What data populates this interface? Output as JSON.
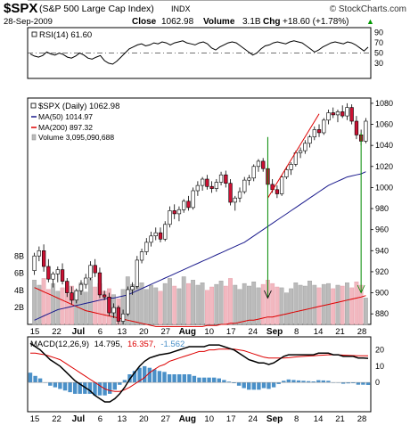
{
  "header": {
    "symbol": "$SPX",
    "name": "(S&P 500 Large Cap Index)",
    "exchange": "INDX",
    "brand": "© StockCharts.com",
    "date": "28-Sep-2009",
    "close_label": "Close",
    "close_value": "1062.98",
    "volume_label": "Volume",
    "volume_value": "3.1B",
    "chg_label": "Chg",
    "chg_value": "+18.60 (+1.78%)",
    "chg_arrow": "▲"
  },
  "rsi_panel": {
    "legend": "RSI(14) 61.60",
    "levels": [
      90,
      70,
      50,
      30
    ],
    "overbought": 70,
    "oversold": 30
  },
  "price_panel": {
    "legend_main": "$SPX (Daily) 1062.98",
    "legend_ma50": "MA(50) 1014.97",
    "legend_ma200": "MA(200) 897.32",
    "legend_volume": "Volume 3,095,090,688",
    "y_ticks": [
      880,
      900,
      920,
      940,
      960,
      980,
      1000,
      1020,
      1040,
      1060,
      1080
    ],
    "vol_ticks": [
      "2B",
      "4B",
      "6B",
      "8B"
    ],
    "colors": {
      "up": "#ffffff",
      "down": "#cc1133",
      "ma50": "#1a1a8c",
      "ma200": "#dd0000",
      "trend": "#dd0000",
      "annot": "#008800",
      "vol_up": "#bbbbbb",
      "vol_down": "#f2b8c0"
    }
  },
  "macd_panel": {
    "legend_name": "MACD(12,26,9)",
    "legend_macd": "14.795,",
    "legend_signal": "16.357,",
    "legend_hist": "-1.562",
    "y_ticks": [
      20,
      10,
      0
    ],
    "colors": {
      "macd": "#000000",
      "signal": "#dd0000",
      "hist": "#4a90c8"
    }
  },
  "x_axis": {
    "labels": [
      {
        "text": "15",
        "bold": false
      },
      {
        "text": "22",
        "bold": false
      },
      {
        "text": "Jul",
        "bold": true
      },
      {
        "text": "6",
        "bold": false
      },
      {
        "text": "13",
        "bold": false
      },
      {
        "text": "20",
        "bold": false
      },
      {
        "text": "27",
        "bold": false
      },
      {
        "text": "Aug",
        "bold": true
      },
      {
        "text": "10",
        "bold": false
      },
      {
        "text": "17",
        "bold": false
      },
      {
        "text": "24",
        "bold": false
      },
      {
        "text": "Sep",
        "bold": true
      },
      {
        "text": "8",
        "bold": false
      },
      {
        "text": "14",
        "bold": false
      },
      {
        "text": "21",
        "bold": false
      },
      {
        "text": "28",
        "bold": false
      }
    ]
  },
  "chart_data": [
    {
      "type": "line",
      "name": "RSI(14)",
      "ylim": [
        0,
        100
      ],
      "values": [
        48,
        44,
        42,
        45,
        52,
        48,
        46,
        50,
        47,
        42,
        40,
        44,
        50,
        46,
        40,
        38,
        42,
        45,
        35,
        30,
        28,
        34,
        42,
        50,
        58,
        62,
        66,
        68,
        64,
        66,
        70,
        68,
        72,
        70,
        66,
        70,
        72,
        74,
        70,
        68,
        66,
        70,
        72,
        68,
        60,
        56,
        62,
        66,
        70,
        72,
        70,
        64,
        58,
        52,
        46,
        50,
        58,
        64,
        66,
        70,
        72,
        70,
        68,
        72,
        74,
        72,
        70,
        64,
        58,
        52,
        56,
        62,
        66,
        70,
        72,
        70,
        68,
        72,
        70,
        66,
        60,
        54,
        61.6
      ]
    },
    {
      "type": "candlestick",
      "name": "$SPX (Daily)",
      "ylim": [
        870,
        1085
      ],
      "ohlc": [
        [
          921,
          938,
          917,
          935
        ],
        [
          935,
          944,
          930,
          940
        ],
        [
          940,
          946,
          920,
          925
        ],
        [
          925,
          932,
          910,
          913
        ],
        [
          913,
          920,
          905,
          918
        ],
        [
          918,
          925,
          910,
          922
        ],
        [
          922,
          928,
          908,
          911
        ],
        [
          911,
          914,
          896,
          900
        ],
        [
          900,
          906,
          889,
          893
        ],
        [
          893,
          904,
          890,
          902
        ],
        [
          902,
          912,
          898,
          908
        ],
        [
          908,
          918,
          904,
          914
        ],
        [
          914,
          930,
          912,
          926
        ],
        [
          926,
          932,
          915,
          919
        ],
        [
          919,
          924,
          895,
          898
        ],
        [
          898,
          902,
          893,
          896
        ],
        [
          896,
          900,
          878,
          881
        ],
        [
          881,
          890,
          876,
          886
        ],
        [
          886,
          888,
          870,
          873
        ],
        [
          873,
          884,
          870,
          880
        ],
        [
          880,
          906,
          878,
          903
        ],
        [
          903,
          910,
          898,
          906
        ],
        [
          906,
          935,
          904,
          931
        ],
        [
          931,
          942,
          928,
          939
        ],
        [
          939,
          952,
          936,
          948
        ],
        [
          948,
          958,
          944,
          954
        ],
        [
          954,
          962,
          950,
          957
        ],
        [
          957,
          962,
          948,
          951
        ],
        [
          951,
          968,
          949,
          965
        ],
        [
          965,
          982,
          962,
          978
        ],
        [
          978,
          984,
          970,
          975
        ],
        [
          975,
          982,
          968,
          979
        ],
        [
          979,
          989,
          976,
          987
        ],
        [
          987,
          992,
          978,
          981
        ],
        [
          981,
          1000,
          979,
          997
        ],
        [
          997,
          1006,
          992,
          1002
        ],
        [
          1002,
          1010,
          997,
          1008
        ],
        [
          1008,
          1012,
          998,
          1001
        ],
        [
          1001,
          1006,
          995,
          999
        ],
        [
          999,
          1008,
          996,
          1005
        ],
        [
          1005,
          1015,
          1002,
          1012
        ],
        [
          1012,
          1016,
          1000,
          1004
        ],
        [
          1004,
          1008,
          983,
          986
        ],
        [
          986,
          992,
          978,
          990
        ],
        [
          990,
          1000,
          986,
          996
        ],
        [
          996,
          1010,
          994,
          1007
        ],
        [
          1007,
          1012,
          1002,
          1009
        ],
        [
          1009,
          1022,
          1006,
          1020
        ],
        [
          1020,
          1027,
          1015,
          1025
        ],
        [
          1025,
          1028,
          1015,
          1018
        ],
        [
          1018,
          1022,
          1000,
          1003
        ],
        [
          1003,
          1008,
          995,
          998
        ],
        [
          998,
          1002,
          990,
          994
        ],
        [
          994,
          1012,
          992,
          1010
        ],
        [
          1010,
          1020,
          1008,
          1017
        ],
        [
          1017,
          1024,
          1012,
          1022
        ],
        [
          1022,
          1035,
          1020,
          1033
        ],
        [
          1033,
          1038,
          1028,
          1035
        ],
        [
          1035,
          1045,
          1032,
          1042
        ],
        [
          1042,
          1050,
          1038,
          1048
        ],
        [
          1048,
          1058,
          1045,
          1055
        ],
        [
          1055,
          1060,
          1048,
          1052
        ],
        [
          1052,
          1066,
          1050,
          1064
        ],
        [
          1064,
          1074,
          1060,
          1071
        ],
        [
          1071,
          1076,
          1066,
          1069
        ],
        [
          1069,
          1074,
          1062,
          1072
        ],
        [
          1072,
          1078,
          1066,
          1068
        ],
        [
          1068,
          1080,
          1064,
          1076
        ],
        [
          1076,
          1079,
          1060,
          1063
        ],
        [
          1063,
          1068,
          1046,
          1050
        ],
        [
          1050,
          1055,
          1040,
          1044
        ],
        [
          1044,
          1066,
          1042,
          1063
        ]
      ]
    },
    {
      "type": "line",
      "name": "MA(50)",
      "x_start_index": 0,
      "values": [
        874,
        876,
        878,
        880,
        882,
        884,
        885,
        886,
        887,
        888,
        889,
        890,
        891,
        892,
        893,
        894,
        895,
        895,
        896,
        897,
        898,
        900,
        902,
        904,
        906,
        908,
        910,
        912,
        914,
        916,
        918,
        920,
        922,
        924,
        926,
        928,
        930,
        932,
        934,
        936,
        938,
        940,
        942,
        944,
        946,
        948,
        951,
        954,
        957,
        960,
        963,
        966,
        969,
        972,
        975,
        978,
        981,
        984,
        987,
        990,
        993,
        996,
        999,
        1002,
        1004,
        1006,
        1008,
        1010,
        1011,
        1012,
        1013,
        1014.97
      ]
    },
    {
      "type": "line",
      "name": "MA(200)",
      "values": [
        905,
        903,
        901,
        899,
        897,
        895,
        893,
        891,
        889,
        887,
        885,
        883,
        882,
        881,
        880,
        879,
        878,
        877,
        876,
        875,
        874,
        873,
        872,
        871,
        870,
        869,
        868,
        868,
        868,
        868,
        868,
        868,
        868,
        868,
        868,
        868,
        868,
        869,
        869,
        869,
        870,
        870,
        871,
        871,
        872,
        873,
        874,
        874,
        875,
        876,
        877,
        877,
        878,
        879,
        880,
        881,
        882,
        883,
        884,
        885,
        886,
        887,
        888,
        889,
        890,
        891,
        892,
        893,
        894,
        895,
        896,
        897.32
      ]
    },
    {
      "type": "bar",
      "name": "Volume (billions)",
      "ylim": [
        0,
        9
      ],
      "values": [
        5.2,
        4.6,
        5.4,
        4.1,
        4.8,
        3.9,
        4.3,
        3.6,
        4.5,
        4.0,
        4.9,
        3.8,
        5.3,
        4.4,
        4.8,
        3.9,
        4.2,
        3.5,
        3.0,
        4.1,
        5.6,
        4.7,
        4.4,
        4.9,
        4.1,
        4.6,
        4.3,
        3.9,
        4.8,
        5.4,
        4.5,
        4.2,
        5.6,
        4.8,
        5.2,
        4.6,
        4.9,
        4.0,
        4.4,
        4.7,
        5.1,
        4.5,
        5.4,
        4.6,
        4.1,
        4.8,
        4.5,
        5.0,
        4.3,
        4.7,
        5.2,
        4.8,
        4.4,
        4.3,
        3.7,
        4.2,
        4.9,
        4.6,
        4.5,
        5.1,
        4.6,
        4.3,
        4.7,
        4.8,
        4.2,
        4.6,
        4.5,
        4.9,
        4.3,
        5.0,
        4.6,
        3.1
      ]
    },
    {
      "type": "line",
      "name": "MACD(12,26,9)",
      "ylim": [
        -18,
        28
      ],
      "macd": [
        24,
        22,
        20,
        17,
        14,
        12,
        10,
        7,
        4,
        1,
        -1,
        -3,
        -5,
        -8,
        -10,
        -12,
        -12,
        -10,
        -7,
        -3,
        2,
        6,
        10,
        13,
        15,
        16,
        17,
        17.5,
        18,
        19,
        20,
        21,
        22,
        22,
        22,
        22,
        23,
        23,
        23,
        22,
        21,
        20,
        18,
        16,
        14,
        13,
        12,
        12,
        11,
        12,
        14,
        16,
        17,
        17,
        17,
        17,
        17,
        17,
        18,
        18,
        18,
        17,
        17,
        16,
        16,
        16,
        15,
        15,
        14.8
      ],
      "signal": [
        18,
        18,
        17.5,
        17,
        16,
        15,
        14,
        12,
        10,
        8,
        6,
        4,
        2,
        0,
        -2,
        -4,
        -5,
        -5.5,
        -5.5,
        -4.5,
        -3,
        -1,
        1,
        3,
        6,
        8,
        10,
        11,
        13,
        14,
        15,
        16,
        17,
        18,
        19,
        19,
        20,
        20,
        20.5,
        20.5,
        20.5,
        20.5,
        20,
        19.5,
        18.5,
        17.5,
        16.5,
        15.5,
        15,
        15,
        15,
        15,
        15.2,
        15.5,
        15.8,
        16,
        16.2,
        16.4,
        16.6,
        16.8,
        17,
        17,
        17,
        16.8,
        16.6,
        16.5,
        16.4,
        16.4,
        16.357
      ],
      "histogram": [
        6,
        4,
        2.5,
        0,
        -2,
        -3,
        -4,
        -5,
        -6,
        -7,
        -7,
        -7,
        -7,
        -8,
        -8,
        -8,
        -7,
        -4.5,
        -1.5,
        1.5,
        5,
        7,
        9,
        10,
        9,
        8,
        7,
        6.5,
        5,
        5,
        5,
        5,
        5,
        4,
        3,
        3,
        3,
        3,
        2.5,
        1.5,
        0.5,
        -0.5,
        -2,
        -3.5,
        -4.5,
        -4.5,
        -4.5,
        -3.5,
        -4,
        -3,
        -1,
        1,
        1.8,
        1.5,
        1.2,
        1,
        0.8,
        0.6,
        1.4,
        1.2,
        1,
        0,
        0,
        -0.8,
        -0.6,
        -0.5,
        -1.4,
        -1.4,
        -1.562
      ]
    }
  ]
}
